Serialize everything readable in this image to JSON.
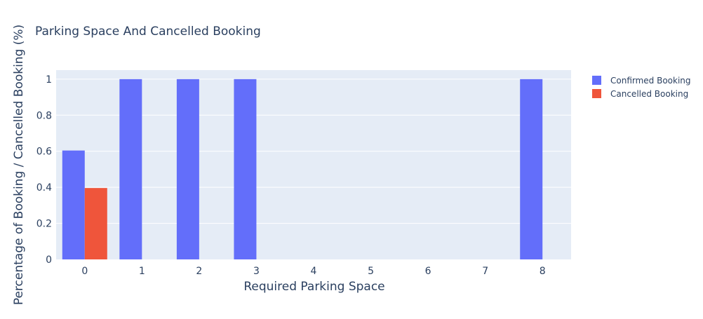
{
  "chart_data": {
    "type": "bar",
    "title": "Parking Space And Cancelled Booking",
    "xlabel": "Required Parking Space",
    "ylabel": "Percentage of Booking / Cancelled Booking (%)",
    "categories": [
      "0",
      "1",
      "2",
      "3",
      "4",
      "5",
      "6",
      "7",
      "8"
    ],
    "series": [
      {
        "name": "Confirmed Booking",
        "color": "#636efa",
        "values": [
          0.604,
          1,
          1,
          1,
          0,
          0,
          0,
          0,
          1
        ]
      },
      {
        "name": "Cancelled Booking",
        "color": "#ef553b",
        "values": [
          0.396,
          0,
          0,
          0,
          0,
          0,
          0,
          0,
          0
        ]
      }
    ],
    "ylim": [
      0,
      1.05
    ],
    "yticks": [
      "0",
      "0.2",
      "0.4",
      "0.6",
      "0.8",
      "1"
    ],
    "grid": true,
    "legend_position": "top-right",
    "plot_background": "#e5ecf6"
  }
}
